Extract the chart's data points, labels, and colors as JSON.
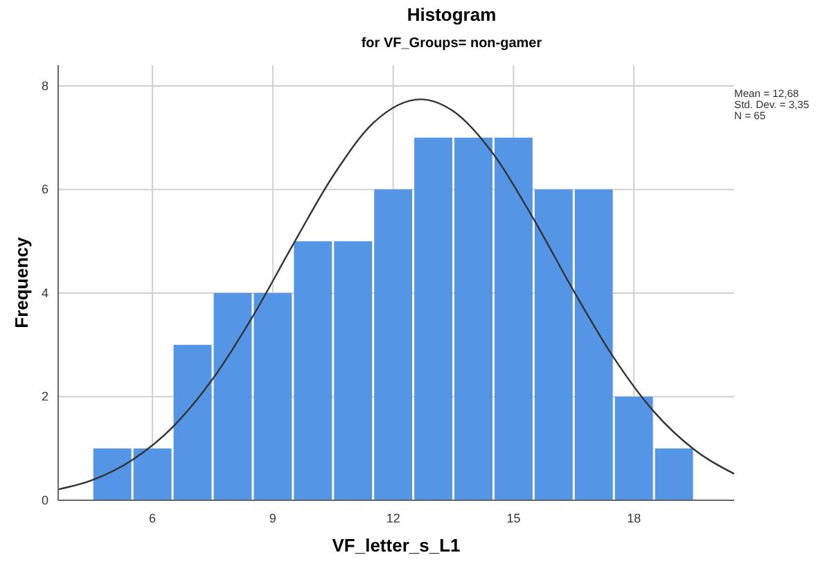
{
  "chart_data": {
    "type": "histogram",
    "title": "Histogram",
    "subtitle": "for VF_Groups= non-gamer",
    "xlabel": "VF_letter_s_L1",
    "ylabel": "Frequency",
    "bins": [
      4.5,
      5.5,
      6.5,
      7.5,
      8.5,
      9.5,
      10.5,
      11.5,
      12.5,
      13.5,
      14.5,
      15.5,
      16.5,
      17.5,
      18.5,
      19.5
    ],
    "values": [
      1,
      1,
      3,
      4,
      4,
      5,
      5,
      6,
      7,
      7,
      7,
      6,
      6,
      2,
      1
    ],
    "color": "#5595e5",
    "series": [
      {
        "type": "line",
        "color": "#333333",
        "x": [
          3.65,
          4.5,
          5.5,
          6.5,
          7.5,
          8.5,
          9.5,
          10.5,
          11.5,
          12.68,
          13.5,
          14.5,
          15.5,
          16.5,
          17.5,
          18.5,
          19.5,
          20.5
        ],
        "values": [
          0.21,
          0.39,
          0.78,
          1.41,
          2.34,
          3.55,
          4.93,
          6.26,
          7.28,
          7.74,
          7.51,
          6.68,
          5.43,
          4.04,
          2.75,
          1.71,
          0.98,
          0.51
        ]
      }
    ],
    "xlim": [
      3.65,
      20.5
    ],
    "xticks": [
      6,
      9,
      12,
      15,
      18
    ],
    "ylim": [
      0,
      8.4
    ],
    "yticks": [
      0,
      2,
      4,
      6,
      8
    ],
    "grid": true,
    "annotations": [
      "Mean = 12,68",
      "Std. Dev. = 3,35",
      "N = 65"
    ]
  }
}
